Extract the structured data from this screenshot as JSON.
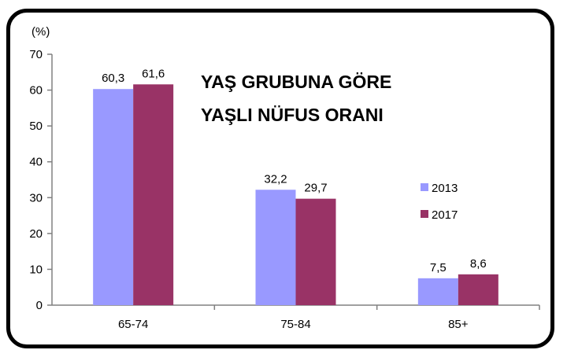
{
  "chart_data": {
    "type": "bar",
    "title_lines": [
      "YAŞ GRUBUNA GÖRE",
      "YAŞLI NÜFUS ORANI"
    ],
    "unit_label": "(%)",
    "categories": [
      "65-74",
      "75-84",
      "85+"
    ],
    "series": [
      {
        "name": "2013",
        "values": [
          60.3,
          32.2,
          7.5
        ],
        "labels": [
          "60,3",
          "32,2",
          "7,5"
        ],
        "color": "#9999ff"
      },
      {
        "name": "2017",
        "values": [
          61.6,
          29.7,
          8.6
        ],
        "labels": [
          "61,6",
          "29,7",
          "8,6"
        ],
        "color": "#993366"
      }
    ],
    "ylim": [
      0,
      70
    ],
    "yticks": [
      0,
      10,
      20,
      30,
      40,
      50,
      60,
      70
    ],
    "grid": false,
    "legend_position": "right"
  }
}
